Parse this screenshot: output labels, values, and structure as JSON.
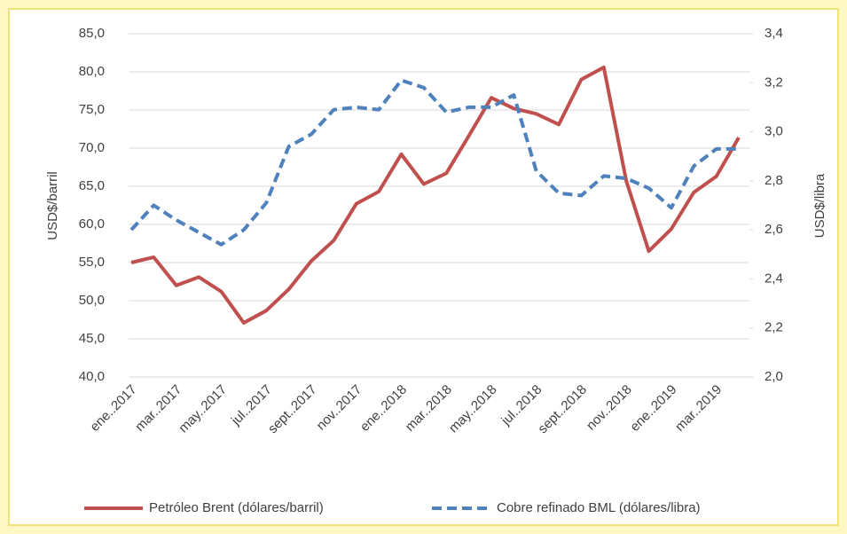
{
  "chart_data": {
    "type": "line",
    "categories": [
      "ene..2017",
      null,
      "mar..2017",
      null,
      "may..2017",
      null,
      "jul..2017",
      null,
      "sept..2017",
      null,
      "nov..2017",
      null,
      "ene..2018",
      null,
      "mar..2018",
      null,
      "may..2018",
      null,
      "jul..2018",
      null,
      "sept..2018",
      null,
      "nov..2018",
      null,
      "ene..2019",
      null,
      "mar..2019",
      null
    ],
    "y_label": "USD$/barril",
    "y2_label": "USD$/libra",
    "ylim": [
      40,
      85
    ],
    "yticks": [
      {
        "value": 40,
        "label": "40,0"
      },
      {
        "value": 45,
        "label": "45,0"
      },
      {
        "value": 50,
        "label": "50,0"
      },
      {
        "value": 55,
        "label": "55,0"
      },
      {
        "value": 60,
        "label": "60,0"
      },
      {
        "value": 65,
        "label": "65,0"
      },
      {
        "value": 70,
        "label": "70,0"
      },
      {
        "value": 75,
        "label": "75,0"
      },
      {
        "value": 80,
        "label": "80,0"
      },
      {
        "value": 85,
        "label": "85,0"
      }
    ],
    "y2lim": [
      2.0,
      3.4
    ],
    "y2ticks": [
      {
        "value": 2.0,
        "label": "2,0"
      },
      {
        "value": 2.2,
        "label": "2,2"
      },
      {
        "value": 2.4,
        "label": "2,4"
      },
      {
        "value": 2.6,
        "label": "2,6"
      },
      {
        "value": 2.8,
        "label": "2,8"
      },
      {
        "value": 3.0,
        "label": "3,0"
      },
      {
        "value": 3.2,
        "label": "3,2"
      },
      {
        "value": 3.4,
        "label": "3,4"
      }
    ],
    "grid": true,
    "legend": "bottom",
    "series": [
      {
        "name": "Petróleo Brent (dólares/barril)",
        "color": "#c0504d",
        "dashed": false,
        "values": [
          55.0,
          55.7,
          52.0,
          53.1,
          51.2,
          47.1,
          48.7,
          51.5,
          55.2,
          57.9,
          62.7,
          64.3,
          69.2,
          65.3,
          66.7,
          71.6,
          76.6,
          75.2,
          74.5,
          73.1,
          79.0,
          80.6,
          65.7,
          56.5,
          59.4,
          64.2,
          66.3,
          71.4
        ]
      },
      {
        "name": "Cobre refinado BML (dólares/libra)",
        "color": "#4f81bd",
        "dashed": true,
        "axis": "y2",
        "values": [
          2.6,
          2.7,
          2.64,
          2.59,
          2.54,
          2.6,
          2.71,
          2.94,
          2.99,
          3.09,
          3.1,
          3.09,
          3.21,
          3.18,
          3.08,
          3.1,
          3.1,
          3.15,
          2.84,
          2.75,
          2.74,
          2.82,
          2.81,
          2.77,
          2.69,
          2.86,
          2.93,
          2.93
        ]
      }
    ]
  }
}
